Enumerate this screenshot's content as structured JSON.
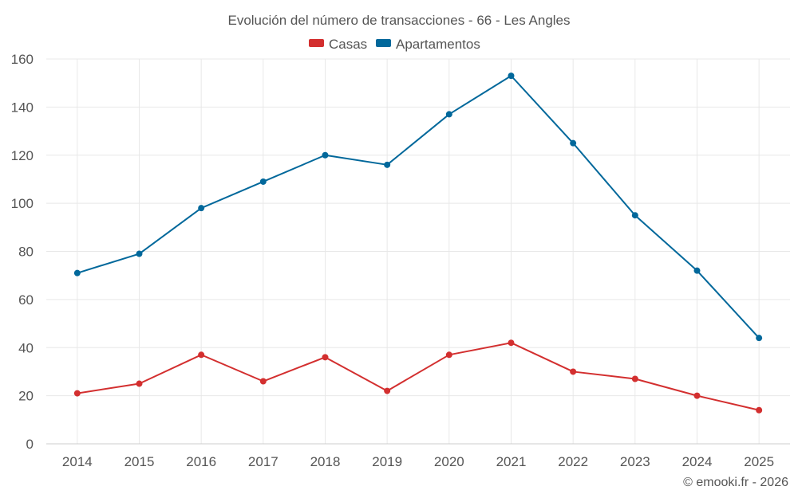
{
  "chart_data": {
    "type": "line",
    "title": "Evolución del número de transacciones - 66 - Les Angles",
    "categories": [
      "2014",
      "2015",
      "2016",
      "2017",
      "2018",
      "2019",
      "2020",
      "2021",
      "2022",
      "2023",
      "2024",
      "2025"
    ],
    "series": [
      {
        "name": "Casas",
        "color": "#d32f2f",
        "values": [
          21,
          25,
          37,
          26,
          36,
          22,
          37,
          42,
          30,
          27,
          20,
          14
        ]
      },
      {
        "name": "Apartamentos",
        "color": "#01689b",
        "values": [
          71,
          79,
          98,
          109,
          120,
          116,
          137,
          153,
          125,
          95,
          72,
          44
        ]
      }
    ],
    "ylim": [
      0,
      160
    ],
    "yticks": [
      0,
      20,
      40,
      60,
      80,
      100,
      120,
      140,
      160
    ],
    "xlabel": "",
    "ylabel": "",
    "grid": true,
    "legend_position": "top-center"
  },
  "credit": "© emooki.fr - 2026"
}
